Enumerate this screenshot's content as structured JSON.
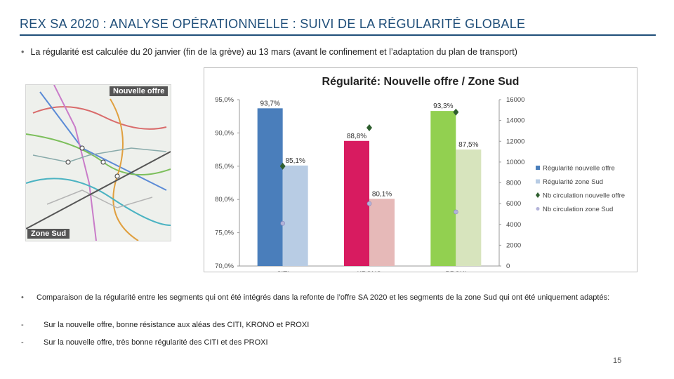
{
  "slide": {
    "title": "REX SA 2020 : ANALYSE OPÉRATIONNELLE : SUIVI DE LA RÉGULARITÉ GLOBALE",
    "intro_bullet": "La régularité est calculée du 20 janvier (fin de la grève) au 13 mars (avant le confinement et l’adaptation du plan de transport)",
    "comparison_bullet": "Comparaison de la régularité entre les segments qui ont été intégrés dans la refonte de l’offre SA 2020 et les segments de la zone Sud qui ont été uniquement adaptés:",
    "findings": [
      {
        "marker": "-",
        "text": "Sur la nouvelle offre, bonne résistance aux aléas des CITI, KRONO et PROXI"
      },
      {
        "marker": "-",
        "text": "Sur la nouvelle offre, très bonne régularité des CITI et des PROXI"
      }
    ],
    "page_number": "15"
  },
  "map": {
    "label_top": "Nouvelle offre",
    "label_bottom": "Zone Sud"
  },
  "chart_data": {
    "type": "bar",
    "title": "Régularité: Nouvelle offre / Zone Sud",
    "categories": [
      "CITI",
      "KRONO",
      "PROXI"
    ],
    "category_colors": {
      "nouvelle": [
        "#4a7ebb",
        "#d81b60",
        "#92d050"
      ],
      "sud": [
        "#b8cce4",
        "#e6b9b8",
        "#d7e4bd"
      ]
    },
    "series": [
      {
        "name": "Régularité nouvelle offre",
        "axis": "left",
        "values": [
          93.7,
          88.8,
          93.3
        ],
        "labels": [
          "93,7%",
          "88,8%",
          "93,3%"
        ],
        "legend_color": "#4a7ebb"
      },
      {
        "name": "Régularité zone Sud",
        "axis": "left",
        "values": [
          85.1,
          80.1,
          87.5
        ],
        "labels": [
          "85,1%",
          "80,1%",
          "87,5%"
        ],
        "legend_color": "#b8cce4"
      },
      {
        "name": "Nb circulation nouvelle offre",
        "axis": "right",
        "kind": "marker",
        "values": [
          9600,
          13300,
          14800
        ],
        "legend_color": "#2e5e2e"
      },
      {
        "name": "Nb circulation zone Sud",
        "axis": "right",
        "kind": "marker",
        "values": [
          4100,
          6000,
          5200
        ],
        "legend_color": "#b3b3d9"
      }
    ],
    "y_left": {
      "min": 70,
      "max": 95,
      "ticks": [
        "70,0%",
        "75,0%",
        "80,0%",
        "85,0%",
        "90,0%",
        "95,0%"
      ]
    },
    "y_right": {
      "min": 0,
      "max": 16000,
      "ticks": [
        "0",
        "2000",
        "4000",
        "6000",
        "8000",
        "10000",
        "12000",
        "14000",
        "16000"
      ]
    },
    "legend_position": "right"
  }
}
